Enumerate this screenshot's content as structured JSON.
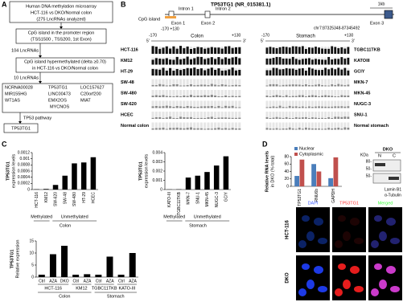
{
  "panel_a": {
    "label": "A",
    "box1": [
      "Human DNA methylation microarray",
      "HCT-116 vs DKO/Normal colon",
      "(275 LncRNAs analyzed)"
    ],
    "box2": [
      "CpG island in the promoter region",
      "(TSS1500 , TSS200, 1st Exon)"
    ],
    "count1": "104 LncRNAs",
    "box3": [
      "CpG island hypermethylated (delta ≥0.70)",
      "in HCT-116 vs DKO/Normal colon"
    ],
    "count2": "10 LncRNAs",
    "lncrnas": [
      "NCRNA00028",
      "MIR155HG",
      "WT1AS",
      "TP53TG1",
      "LINC00473",
      "EMX2OS",
      "MYCNOS",
      "LOC157627",
      "C20orf200",
      "MIAT"
    ],
    "pathway": "TP53 pathway",
    "result": "TP53TG1"
  },
  "panel_b": {
    "label": "B",
    "gene": "TP53TG1 (NR_015381.1)",
    "scale": "1kb",
    "cpg_island": "CpG island",
    "introns": [
      "Intron 1",
      "Intron 2"
    ],
    "exons": [
      "Exon 1",
      "Exon 2",
      "Exon 3"
    ],
    "cpg_range": "-170  +130",
    "coords": "chr7:87325348-87345492",
    "start": "-170",
    "end": "+130",
    "five": "5'",
    "three": "3'",
    "tissues": [
      "Colon",
      "Stomach"
    ],
    "colon_lines": [
      "HCT-116",
      "KM12",
      "HT-29",
      "SW-48",
      "SW-480",
      "SW-620",
      "HCEC",
      "Normal colon"
    ],
    "stomach_lines": [
      "TGBC11TKB",
      "KATOIII",
      "GCIY",
      "MKN-7",
      "MKN-45",
      "NUGC-3",
      "SNU-1",
      "Normal stomach"
    ]
  },
  "panel_c": {
    "label": "C"
  },
  "panel_d": {
    "label": "D",
    "blot_title": "DKO",
    "kda": "KDa",
    "fractions": [
      "N",
      "C"
    ],
    "markers": [
      "80-",
      "50-",
      "50-"
    ],
    "proteins": [
      "Lamin B1",
      "α-Tubulin"
    ],
    "stains": [
      "DAPI",
      "TP53TG1",
      "Merged"
    ],
    "rows": [
      "HCT-116",
      "DKO"
    ]
  },
  "chart_data": [
    {
      "type": "bar",
      "y_label": [
        "TP53TG1",
        "expression levels"
      ],
      "categories": [
        "HCT-116",
        "KM12",
        "SW-620",
        "SW-48",
        "SW-480",
        "HT-29",
        "HCEC"
      ],
      "values": [
        1e-05,
        2e-05,
        0.00015,
        0.00045,
        0.00085,
        0.00088,
        0.00105
      ],
      "color": "#000000",
      "ylim": [
        0,
        0.0012
      ],
      "yticks": [
        0,
        0.0002,
        0.0004,
        0.0006,
        0.0008,
        0.001,
        0.0012
      ],
      "groups": [
        "Methylated",
        "Unmethylated"
      ],
      "tissue": "Colon"
    },
    {
      "type": "bar",
      "y_label": [
        "TP53TG1",
        "expression levels"
      ],
      "categories": [
        "KATO-III",
        "TGBC11TKB",
        "MKN-7",
        "SNU-1",
        "MKN-45",
        "NUGC-3",
        "GCIY"
      ],
      "values": [
        2e-05,
        3e-05,
        0.0013,
        0.0015,
        0.0019,
        0.0026,
        0.0036
      ],
      "color": "#000000",
      "ylim": [
        0,
        0.004
      ],
      "yticks": [
        0,
        0.001,
        0.002,
        0.003,
        0.004
      ],
      "groups": [
        "Methylated",
        "Unmethylated"
      ],
      "tissue": "Stomach"
    },
    {
      "type": "bar",
      "y_label": [
        "TP53TG1",
        "Relative expression"
      ],
      "categories": [
        "Ctrl",
        "AZA",
        "DKO",
        "Ctrl",
        "AZA",
        "Ctrl",
        "AZA",
        "Ctrl",
        "AZA"
      ],
      "values": [
        1,
        9.5,
        13,
        1,
        1.2,
        1,
        8.5,
        1,
        10
      ],
      "color": "#000000",
      "ylim": [
        0,
        15
      ],
      "yticks": [
        0,
        5,
        10,
        15
      ],
      "cell_lines": [
        "HCT-116",
        "KM12",
        "TGBC11TKB",
        "KATO-III"
      ],
      "tissues": [
        "Colon",
        "Stomach"
      ]
    },
    {
      "type": "bar",
      "y_label": [
        "Relative RNA levels",
        "in DKO (% total)"
      ],
      "categories": [
        "TP53TG1",
        "RNU6b",
        "GAPDH"
      ],
      "series": [
        {
          "name": "Nuclear",
          "color": "#4a7ebb",
          "values": [
            28,
            60,
            22
          ]
        },
        {
          "name": "Cytoplasmic",
          "color": "#c0504d",
          "values": [
            72,
            40,
            78
          ]
        }
      ],
      "ylim": [
        0,
        80
      ],
      "yticks": [
        0,
        20,
        40,
        60,
        80
      ]
    }
  ]
}
